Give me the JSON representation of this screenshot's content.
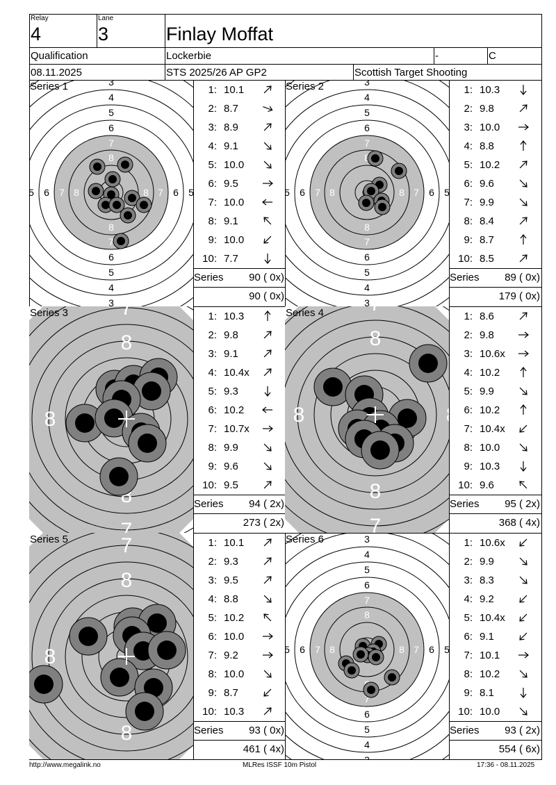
{
  "header": {
    "relay_label": "Relay",
    "relay": "4",
    "lane_label": "Lane",
    "lane": "3",
    "name": "Finlay Moffat",
    "phase": "Qualification",
    "club": "Lockerbie",
    "dash": "-",
    "class_code": "C",
    "date": "08.11.2025",
    "competition": "STS 2025/26 AP GP2",
    "organizer": "Scottish Target Shooting"
  },
  "series": [
    {
      "title": "Series 1",
      "view": "wide",
      "shots": [
        {
          "n": "1:",
          "v": "10.1",
          "dir": "up-right"
        },
        {
          "n": "2:",
          "v": "8.7",
          "dir": "right-down"
        },
        {
          "n": "3:",
          "v": "8.9",
          "dir": "up-right"
        },
        {
          "n": "4:",
          "v": "9.1",
          "dir": "down-right"
        },
        {
          "n": "5:",
          "v": "10.0",
          "dir": "down-right"
        },
        {
          "n": "6:",
          "v": "9.5",
          "dir": "right"
        },
        {
          "n": "7:",
          "v": "10.0",
          "dir": "left"
        },
        {
          "n": "8:",
          "v": "9.1",
          "dir": "up-left"
        },
        {
          "n": "9:",
          "v": "10.0",
          "dir": "down-left"
        },
        {
          "n": "10:",
          "v": "7.7",
          "dir": "down"
        }
      ],
      "series_label": "Series",
      "series_total": "90 ( 0x)",
      "cumulative": "90 ( 0x)"
    },
    {
      "title": "Series 2",
      "view": "wide",
      "shots": [
        {
          "n": "1:",
          "v": "10.3",
          "dir": "down"
        },
        {
          "n": "2:",
          "v": "9.8",
          "dir": "up-right"
        },
        {
          "n": "3:",
          "v": "10.0",
          "dir": "right"
        },
        {
          "n": "4:",
          "v": "8.8",
          "dir": "up"
        },
        {
          "n": "5:",
          "v": "10.2",
          "dir": "up-right"
        },
        {
          "n": "6:",
          "v": "9.6",
          "dir": "down-right"
        },
        {
          "n": "7:",
          "v": "9.9",
          "dir": "down-right"
        },
        {
          "n": "8:",
          "v": "8.4",
          "dir": "up-right"
        },
        {
          "n": "9:",
          "v": "8.7",
          "dir": "up"
        },
        {
          "n": "10:",
          "v": "8.5",
          "dir": "up-right"
        }
      ],
      "series_label": "Series",
      "series_total": "89 ( 0x)",
      "cumulative": "179 ( 0x)"
    },
    {
      "title": "Series 3",
      "view": "zoom",
      "shots": [
        {
          "n": "1:",
          "v": "10.3",
          "dir": "up"
        },
        {
          "n": "2:",
          "v": "9.8",
          "dir": "up-right"
        },
        {
          "n": "3:",
          "v": "9.1",
          "dir": "up-right"
        },
        {
          "n": "4:",
          "v": "10.4x",
          "dir": "up-right"
        },
        {
          "n": "5:",
          "v": "9.3",
          "dir": "down"
        },
        {
          "n": "6:",
          "v": "10.2",
          "dir": "left"
        },
        {
          "n": "7:",
          "v": "10.7x",
          "dir": "right"
        },
        {
          "n": "8:",
          "v": "9.9",
          "dir": "down-right"
        },
        {
          "n": "9:",
          "v": "9.6",
          "dir": "down-right"
        },
        {
          "n": "10:",
          "v": "9.5",
          "dir": "up-right"
        }
      ],
      "series_label": "Series",
      "series_total": "94 ( 2x)",
      "cumulative": "273 ( 2x)"
    },
    {
      "title": "Series 4",
      "view": "zoom",
      "shots": [
        {
          "n": "1:",
          "v": "8.6",
          "dir": "up-right"
        },
        {
          "n": "2:",
          "v": "9.8",
          "dir": "right"
        },
        {
          "n": "3:",
          "v": "10.6x",
          "dir": "right"
        },
        {
          "n": "4:",
          "v": "10.2",
          "dir": "up"
        },
        {
          "n": "5:",
          "v": "9.9",
          "dir": "down-right"
        },
        {
          "n": "6:",
          "v": "10.2",
          "dir": "up"
        },
        {
          "n": "7:",
          "v": "10.4x",
          "dir": "down-left"
        },
        {
          "n": "8:",
          "v": "10.0",
          "dir": "down-right"
        },
        {
          "n": "9:",
          "v": "10.3",
          "dir": "down"
        },
        {
          "n": "10:",
          "v": "9.6",
          "dir": "up-left"
        }
      ],
      "series_label": "Series",
      "series_total": "95 ( 2x)",
      "cumulative": "368 ( 4x)"
    },
    {
      "title": "Series 5",
      "view": "zoom",
      "shots": [
        {
          "n": "1:",
          "v": "10.1",
          "dir": "up-right"
        },
        {
          "n": "2:",
          "v": "9.3",
          "dir": "up-right"
        },
        {
          "n": "3:",
          "v": "9.5",
          "dir": "up-right"
        },
        {
          "n": "4:",
          "v": "8.8",
          "dir": "down-right"
        },
        {
          "n": "5:",
          "v": "10.2",
          "dir": "up-left"
        },
        {
          "n": "6:",
          "v": "10.0",
          "dir": "right"
        },
        {
          "n": "7:",
          "v": "9.2",
          "dir": "right"
        },
        {
          "n": "8:",
          "v": "10.0",
          "dir": "down-right"
        },
        {
          "n": "9:",
          "v": "8.7",
          "dir": "down-left"
        },
        {
          "n": "10:",
          "v": "10.3",
          "dir": "up-right"
        }
      ],
      "series_label": "Series",
      "series_total": "93 ( 0x)",
      "cumulative": "461 ( 4x)"
    },
    {
      "title": "Series 6",
      "view": "wide",
      "shots": [
        {
          "n": "1:",
          "v": "10.6x",
          "dir": "down-left"
        },
        {
          "n": "2:",
          "v": "9.9",
          "dir": "down-right"
        },
        {
          "n": "3:",
          "v": "8.3",
          "dir": "down-right"
        },
        {
          "n": "4:",
          "v": "9.2",
          "dir": "down-left"
        },
        {
          "n": "5:",
          "v": "10.4x",
          "dir": "down-left"
        },
        {
          "n": "6:",
          "v": "9.1",
          "dir": "down-left"
        },
        {
          "n": "7:",
          "v": "10.1",
          "dir": "right"
        },
        {
          "n": "8:",
          "v": "10.2",
          "dir": "down-right"
        },
        {
          "n": "9:",
          "v": "8.1",
          "dir": "down"
        },
        {
          "n": "10:",
          "v": "10.0",
          "dir": "down-right"
        }
      ],
      "series_label": "Series",
      "series_total": "93 ( 2x)",
      "cumulative": "554 ( 6x)"
    }
  ],
  "footer": {
    "url": "http://www.megalink.no",
    "software": "MLRes ISSF 10m Pistol",
    "timestamp": "17:36 - 08.11.2025"
  },
  "colors": {
    "target_gray": "#c0c0c0",
    "shot_ring": "#808080",
    "shot_core": "#000000"
  }
}
